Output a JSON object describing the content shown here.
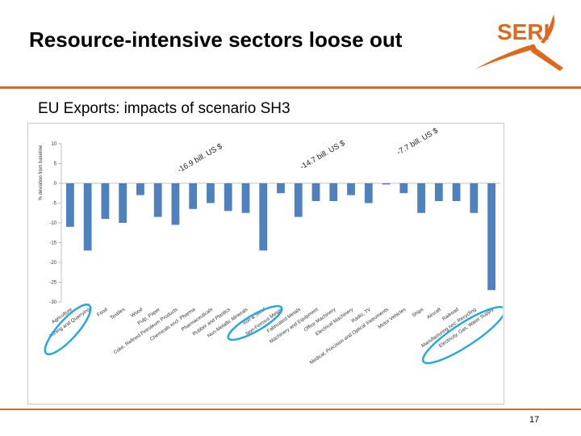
{
  "slide": {
    "title": "Resource-intensive sectors loose out",
    "subtitle": "EU Exports: impacts of scenario SH3",
    "page_number": "17"
  },
  "logo": {
    "text": "SERI",
    "color": "#e0681e"
  },
  "colors": {
    "accent": "#e0681e",
    "bar": "#4f81bd",
    "highlight": "#29a8e0"
  },
  "chart_data": {
    "type": "bar",
    "title": "",
    "ylabel": "% deviation from baseline",
    "xlabel": "",
    "ylim": [
      -30,
      10
    ],
    "yticks": [
      10,
      5,
      0,
      -5,
      -10,
      -15,
      -20,
      -25,
      -30
    ],
    "categories": [
      "Agriculture",
      "Mining and Quarrying",
      "Food",
      "Textiles",
      "Wood",
      "Pulp, Paper",
      "Coke, Refined Petroleum Products",
      "Chemicals excl. Pharma",
      "Pharmaceuticals",
      "Rubber and Plastics",
      "Non-Metallic Minerals",
      "Iron & Steel",
      "Non-Ferrous Metals",
      "Fabricated Metals",
      "Machinery and Equipment",
      "Office Machinery",
      "Electrical Machinery",
      "Radio, TV",
      "Medical, Precision and Optical Instruments",
      "Motor Vehicles",
      "Ships",
      "Aircraft",
      "Railroad",
      "Manufacturing nec; Recycling",
      "Electricity, Gas, Water Supply"
    ],
    "values": [
      -11,
      -17,
      -9,
      -10,
      -3,
      -8.5,
      -10.5,
      -6.5,
      -5,
      -7,
      -7.5,
      -17,
      -2.5,
      -8.5,
      -4.5,
      -4.5,
      -3,
      -5,
      -0.3,
      -2.5,
      -7.5,
      -4.5,
      -4.5,
      -7.5,
      -27
    ],
    "annotations": [
      "-16.9 bill. US $",
      "-14.7 bill. US $",
      "-7.7 bill. US $"
    ],
    "highlighted_groups": [
      [
        "Agriculture",
        "Mining and Quarrying"
      ],
      [
        "Iron & Steel",
        "Non-Ferrous Metals"
      ],
      [
        "Manufacturing nec; Recycling",
        "Electricity, Gas, Water Supply"
      ]
    ]
  }
}
